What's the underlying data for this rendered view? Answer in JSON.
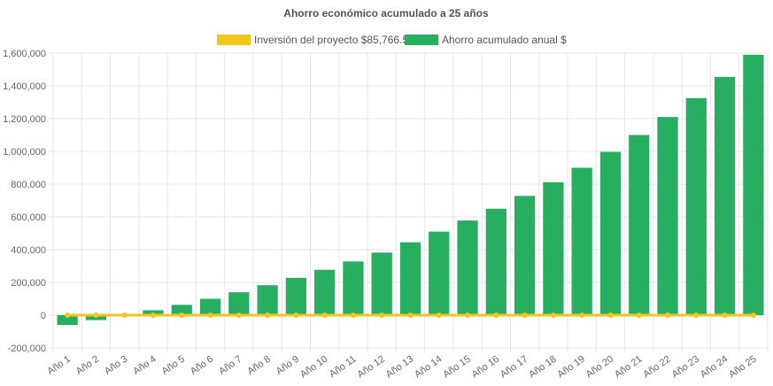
{
  "chart_data": {
    "type": "bar",
    "title": "Ahorro económico acumulado a 25 años",
    "xlabel": "",
    "ylabel": "",
    "ylim": [
      -200000,
      1600000
    ],
    "yticks": [
      -200000,
      0,
      200000,
      400000,
      600000,
      800000,
      1000000,
      1200000,
      1400000,
      1600000
    ],
    "ytick_labels": [
      "-200,000",
      "0",
      "200,000",
      "400,000",
      "600,000",
      "800,000",
      "1,000,000",
      "1,200,000",
      "1,400,000",
      "1,600,000"
    ],
    "grid": true,
    "legend_position": "top",
    "categories": [
      "Año 1",
      "Año 2",
      "Año 3",
      "Año 4",
      "Año 5",
      "Año 6",
      "Año 7",
      "Año 8",
      "Año 9",
      "Año 10",
      "Año 11",
      "Año 12",
      "Año 13",
      "Año 14",
      "Año 15",
      "Año 16",
      "Año 17",
      "Año 18",
      "Año 19",
      "Año 20",
      "Año 21",
      "Año 22",
      "Año 23",
      "Año 24",
      "Año 25"
    ],
    "series": [
      {
        "name": "Inversión del proyecto $85,766.52",
        "type": "line",
        "color": "#f5c518",
        "values": [
          0,
          0,
          0,
          0,
          0,
          0,
          0,
          0,
          0,
          0,
          0,
          0,
          0,
          0,
          0,
          0,
          0,
          0,
          0,
          0,
          0,
          0,
          0,
          0,
          0
        ]
      },
      {
        "name": "Ahorro acumulado anual $",
        "type": "bar",
        "color": "#27ae60",
        "values": [
          -60000,
          -30000,
          -3000,
          30000,
          63000,
          100000,
          140000,
          183000,
          228000,
          277000,
          328000,
          382000,
          445000,
          510000,
          578000,
          650000,
          728000,
          812000,
          900000,
          997000,
          1100000,
          1210000,
          1325000,
          1455000,
          1590000
        ]
      }
    ]
  }
}
